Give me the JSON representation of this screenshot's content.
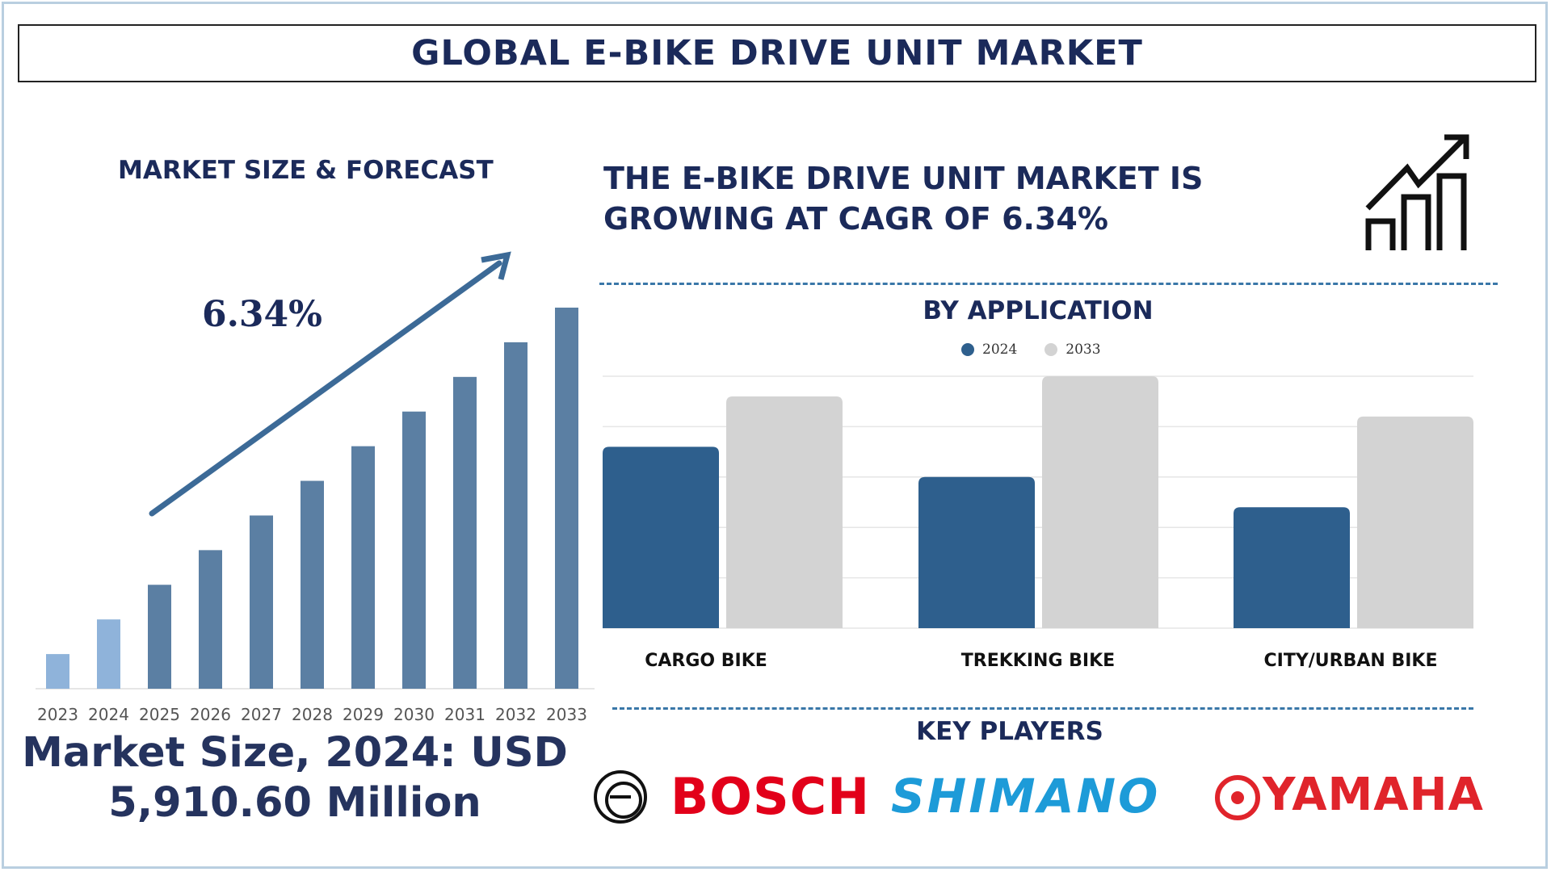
{
  "title": "GLOBAL E-BIKE DRIVE UNIT MARKET",
  "forecast": {
    "section_title": "MARKET SIZE & FORECAST",
    "cagr_label": "6.34%",
    "market_size_line1": "Market Size, 2024: USD",
    "market_size_line2": "5,910.60 Million"
  },
  "headline": {
    "line1": "THE E-BIKE DRIVE UNIT MARKET IS",
    "line2": "GROWING AT CAGR OF 6.34%"
  },
  "application": {
    "section_title": "BY APPLICATION"
  },
  "key_players": {
    "section_title": "KEY PLAYERS",
    "logos": [
      {
        "name": "BOSCH",
        "color": "#e2001a",
        "icon": "bosch-ring-icon"
      },
      {
        "name": "SHIMANO",
        "color": "#1d9bd8"
      },
      {
        "name": "YAMAHA",
        "color": "#e0242b",
        "icon": "yamaha-tuning-fork-icon"
      }
    ]
  },
  "icons": [
    "growth-chart-icon",
    "trend-arrow-icon"
  ],
  "colors": {
    "title": "#1b2a5a",
    "bar_light": "#8fb3da",
    "bar_dark": "#5b7fa3",
    "arrow": "#3c6a97",
    "series_2024": "#2e5f8d",
    "series_2033": "#d3d3d3",
    "dash": "#3a77a8"
  },
  "chart_data": [
    {
      "type": "bar",
      "title": "MARKET SIZE & FORECAST",
      "categories": [
        "2023",
        "2024",
        "2025",
        "2026",
        "2027",
        "2028",
        "2029",
        "2030",
        "2031",
        "2032",
        "2033"
      ],
      "values": [
        1,
        2,
        3,
        4,
        5,
        6,
        7,
        8,
        9,
        10,
        11
      ],
      "highlight": [
        "2023",
        "2024"
      ],
      "annotation": "6.34%",
      "grid": false
    },
    {
      "type": "bar",
      "title": "BY APPLICATION",
      "categories": [
        "CARGO BIKE",
        "TREKKING BIKE",
        "CITY/URBAN BIKE"
      ],
      "series": [
        {
          "name": "2024",
          "values": [
            3.6,
            3.0,
            2.4
          ]
        },
        {
          "name": "2033",
          "values": [
            4.6,
            5.0,
            4.2
          ]
        }
      ],
      "ylim": [
        0,
        5
      ],
      "legend": "top-center",
      "grid": true
    }
  ]
}
